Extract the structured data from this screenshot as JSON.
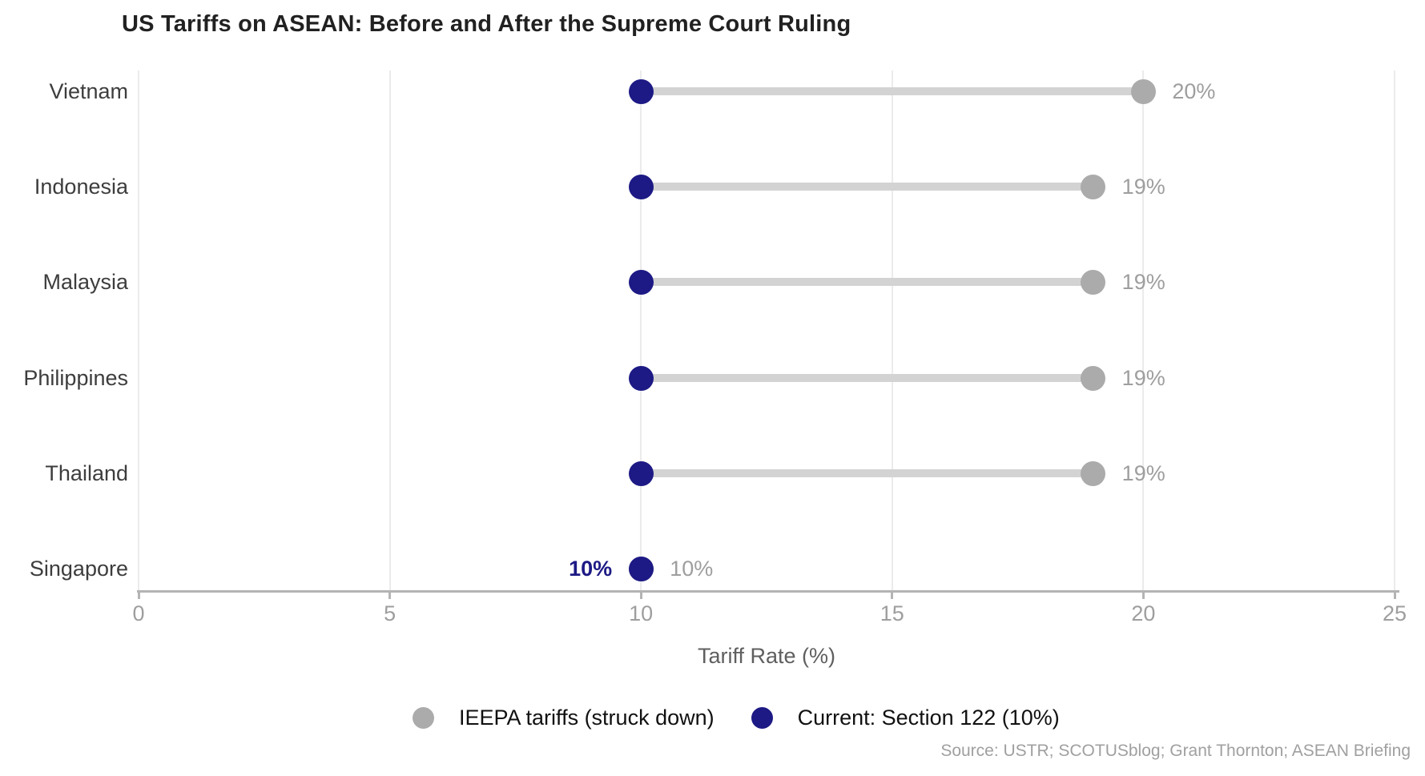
{
  "title": "US Tariffs on ASEAN: Before and After the Supreme Court Ruling",
  "source": "Source: USTR; SCOTUSblog; Grant Thornton; ASEAN Briefing",
  "colors": {
    "current_navy": "#1d1a85",
    "ieepa_gray": "#ababab",
    "connector": "#d3d3d3",
    "grid": "#ebebeb",
    "axis": "#b4b4b4",
    "tick_label": "#9e9e9e",
    "category_label": "#3d3d3d",
    "value_label": "#9e9e9e",
    "title_text": "#212121"
  },
  "chart_data": {
    "type": "dumbbell",
    "title": "US Tariffs on ASEAN: Before and After the Supreme Court Ruling",
    "categories": [
      "Vietnam",
      "Indonesia",
      "Malaysia",
      "Philippines",
      "Thailand",
      "Singapore"
    ],
    "series": [
      {
        "name": "IEEPA tariffs (struck down)",
        "values": [
          20,
          19,
          19,
          19,
          19,
          10
        ]
      },
      {
        "name": "Current: Section 122 (10%)",
        "values": [
          10,
          10,
          10,
          10,
          10,
          10
        ]
      }
    ],
    "value_labels": [
      "20%",
      "19%",
      "19%",
      "19%",
      "19%",
      "10%"
    ],
    "current_value_label": {
      "text": "10%",
      "row": 5
    },
    "xlabel": "Tariff Rate (%)",
    "x_ticks": [
      "0",
      "5",
      "10",
      "15",
      "20",
      "25"
    ],
    "x_tick_values": [
      0,
      5,
      10,
      15,
      20,
      25
    ],
    "xlim": [
      0,
      25
    ],
    "grid": true,
    "legend_position": "bottom"
  },
  "legend": {
    "items": [
      {
        "label": "IEEPA tariffs (struck down)",
        "color": "#ababab"
      },
      {
        "label": "Current: Section 122 (10%)",
        "color": "#1d1a85"
      }
    ]
  }
}
